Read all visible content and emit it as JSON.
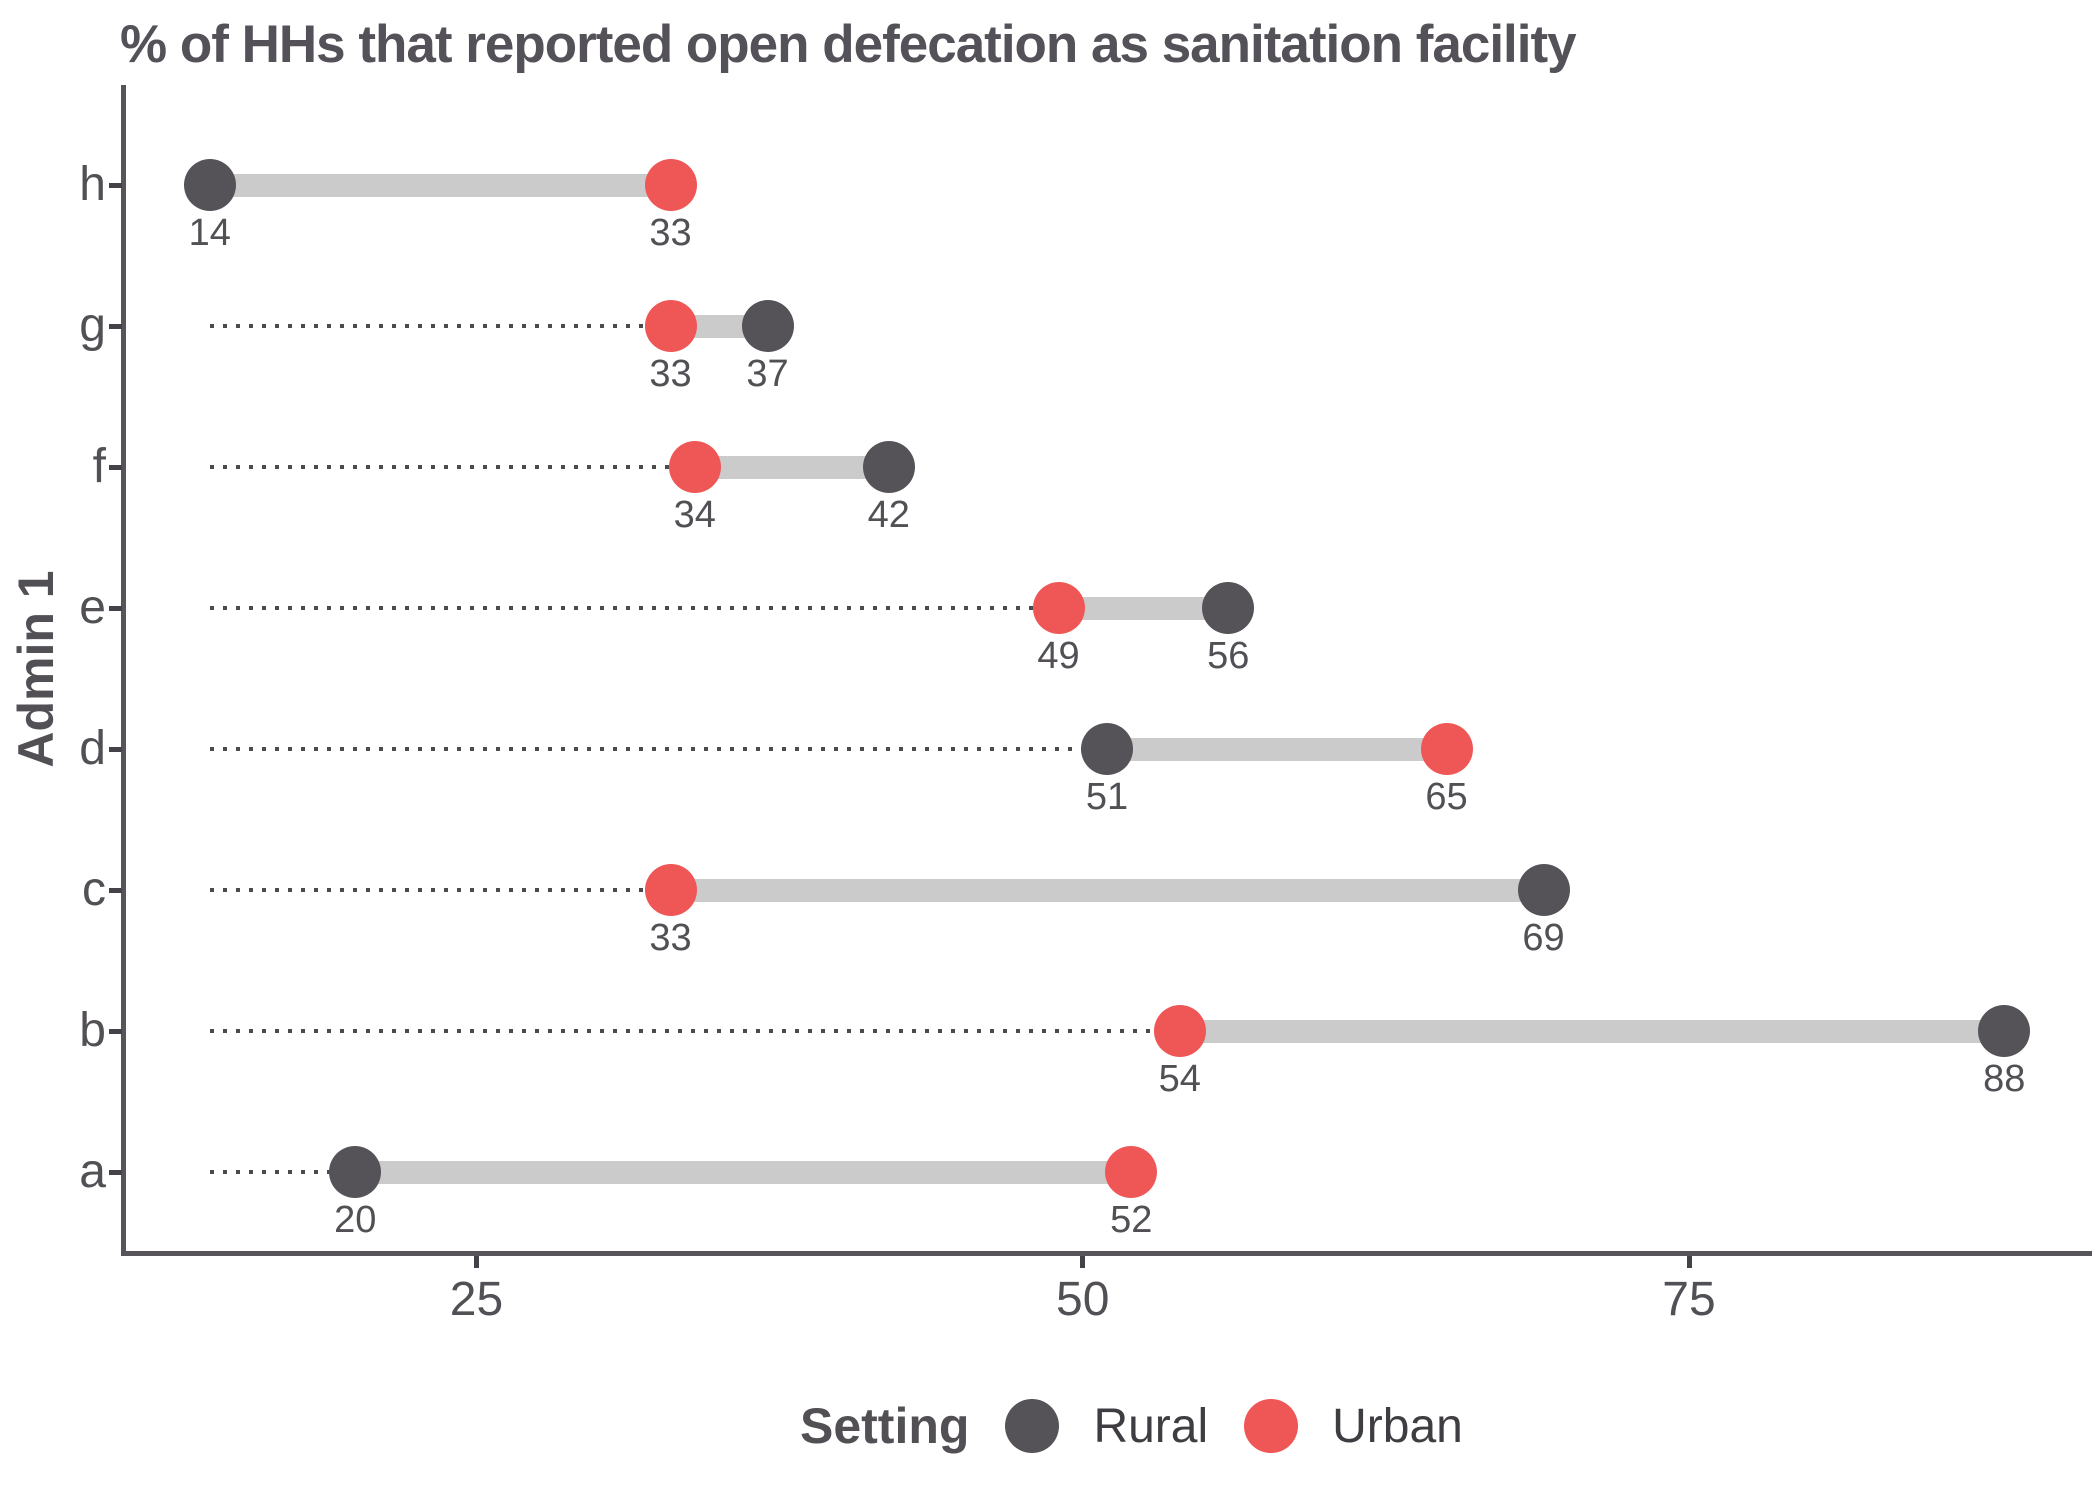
{
  "title": "% of HHs that reported open defecation as sanitation facility",
  "y_axis_label": "Admin 1",
  "legend": {
    "title": "Setting",
    "items": [
      {
        "label": "Rural",
        "color": "#555358"
      },
      {
        "label": "Urban",
        "color": "#EE5756"
      }
    ]
  },
  "chart_data": {
    "type": "dumbbell",
    "orientation": "horizontal",
    "title": "% of HHs that reported open defecation as sanitation facility",
    "ylabel": "Admin 1",
    "xlabel": "",
    "categories": [
      "h",
      "g",
      "f",
      "e",
      "d",
      "c",
      "b",
      "a"
    ],
    "series": [
      {
        "name": "Rural",
        "color": "#555358",
        "values": [
          14,
          37,
          42,
          56,
          51,
          69,
          88,
          20
        ]
      },
      {
        "name": "Urban",
        "color": "#EE5756",
        "values": [
          33,
          33,
          34,
          49,
          65,
          33,
          54,
          52
        ]
      }
    ],
    "x_ticks": [
      25,
      50,
      75
    ],
    "xlim_approx": [
      10,
      92
    ],
    "connector_color": "#CBCBCB",
    "leader_style": "dotted line from global minimum (14) to each row's lower value",
    "value_labels": true,
    "grid": false,
    "legend_position": "bottom"
  }
}
